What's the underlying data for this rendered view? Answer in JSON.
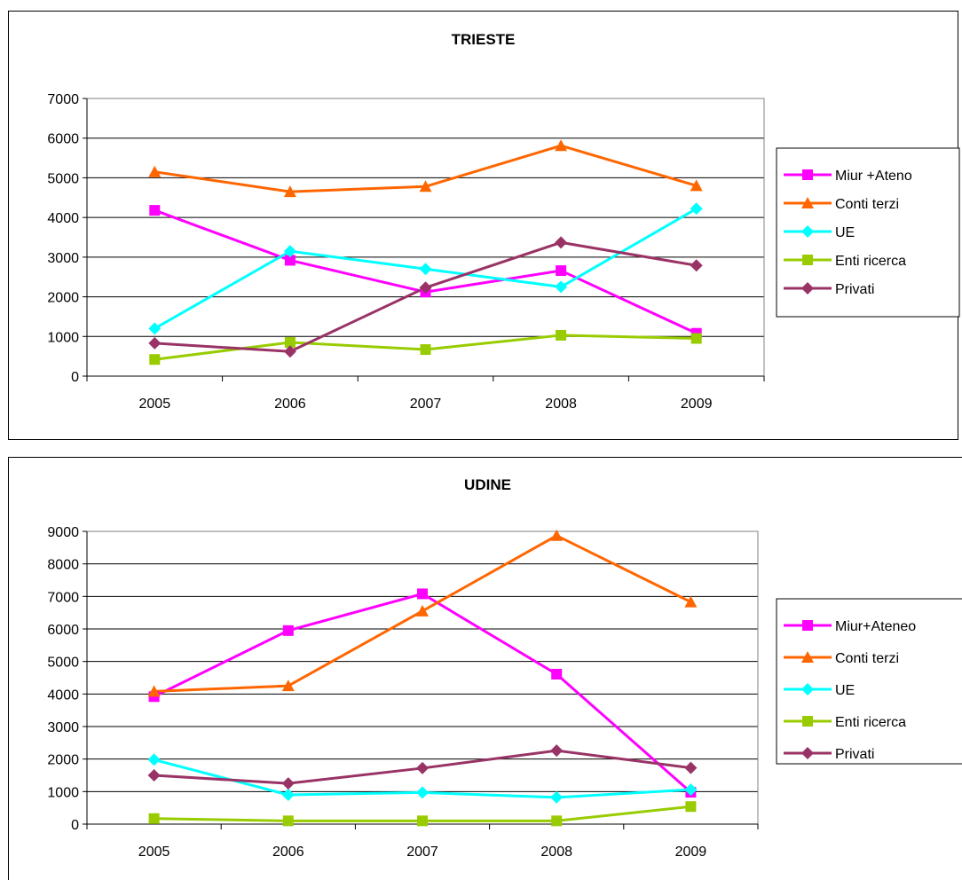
{
  "chart_data": [
    {
      "type": "line",
      "title": "TRIESTE",
      "categories": [
        "2005",
        "2006",
        "2007",
        "2008",
        "2009"
      ],
      "ylim": [
        0,
        7000
      ],
      "yticks": [
        "0",
        "1000",
        "2000",
        "3000",
        "4000",
        "5000",
        "6000",
        "7000"
      ],
      "grid": true,
      "legend_position": "right",
      "series": [
        {
          "name": "Miur +Ateno",
          "color": "#ff00ff",
          "marker": "square",
          "values": [
            4180,
            2920,
            2120,
            2660,
            1080
          ]
        },
        {
          "name": "Conti terzi",
          "color": "#ff6600",
          "marker": "triangle",
          "values": [
            5150,
            4650,
            4780,
            5810,
            4800
          ]
        },
        {
          "name": "UE",
          "color": "#00ffff",
          "marker": "diamond",
          "values": [
            1200,
            3150,
            2700,
            2250,
            4220
          ]
        },
        {
          "name": "Enti ricerca",
          "color": "#99cc00",
          "marker": "square",
          "values": [
            420,
            850,
            670,
            1030,
            950
          ]
        },
        {
          "name": "Privati",
          "color": "#993366",
          "marker": "diamond",
          "values": [
            830,
            620,
            2230,
            3370,
            2790
          ]
        }
      ]
    },
    {
      "type": "line",
      "title": "UDINE",
      "categories": [
        "2005",
        "2006",
        "2007",
        "2008",
        "2009"
      ],
      "ylim": [
        0,
        9000
      ],
      "yticks": [
        "0",
        "1000",
        "2000",
        "3000",
        "4000",
        "5000",
        "6000",
        "7000",
        "8000",
        "9000"
      ],
      "grid": true,
      "legend_position": "right",
      "series": [
        {
          "name": "Miur+Ateneo",
          "color": "#ff00ff",
          "marker": "square",
          "values": [
            3920,
            5950,
            7080,
            4610,
            980
          ]
        },
        {
          "name": "Conti terzi",
          "color": "#ff6600",
          "marker": "triangle",
          "values": [
            4080,
            4250,
            6550,
            8870,
            6830
          ]
        },
        {
          "name": "UE",
          "color": "#00ffff",
          "marker": "diamond",
          "values": [
            1980,
            900,
            970,
            820,
            1060
          ]
        },
        {
          "name": "Enti ricerca",
          "color": "#99cc00",
          "marker": "square",
          "values": [
            170,
            100,
            100,
            100,
            540
          ]
        },
        {
          "name": "Privati",
          "color": "#993366",
          "marker": "diamond",
          "values": [
            1500,
            1250,
            1720,
            2260,
            1730
          ]
        }
      ]
    }
  ]
}
